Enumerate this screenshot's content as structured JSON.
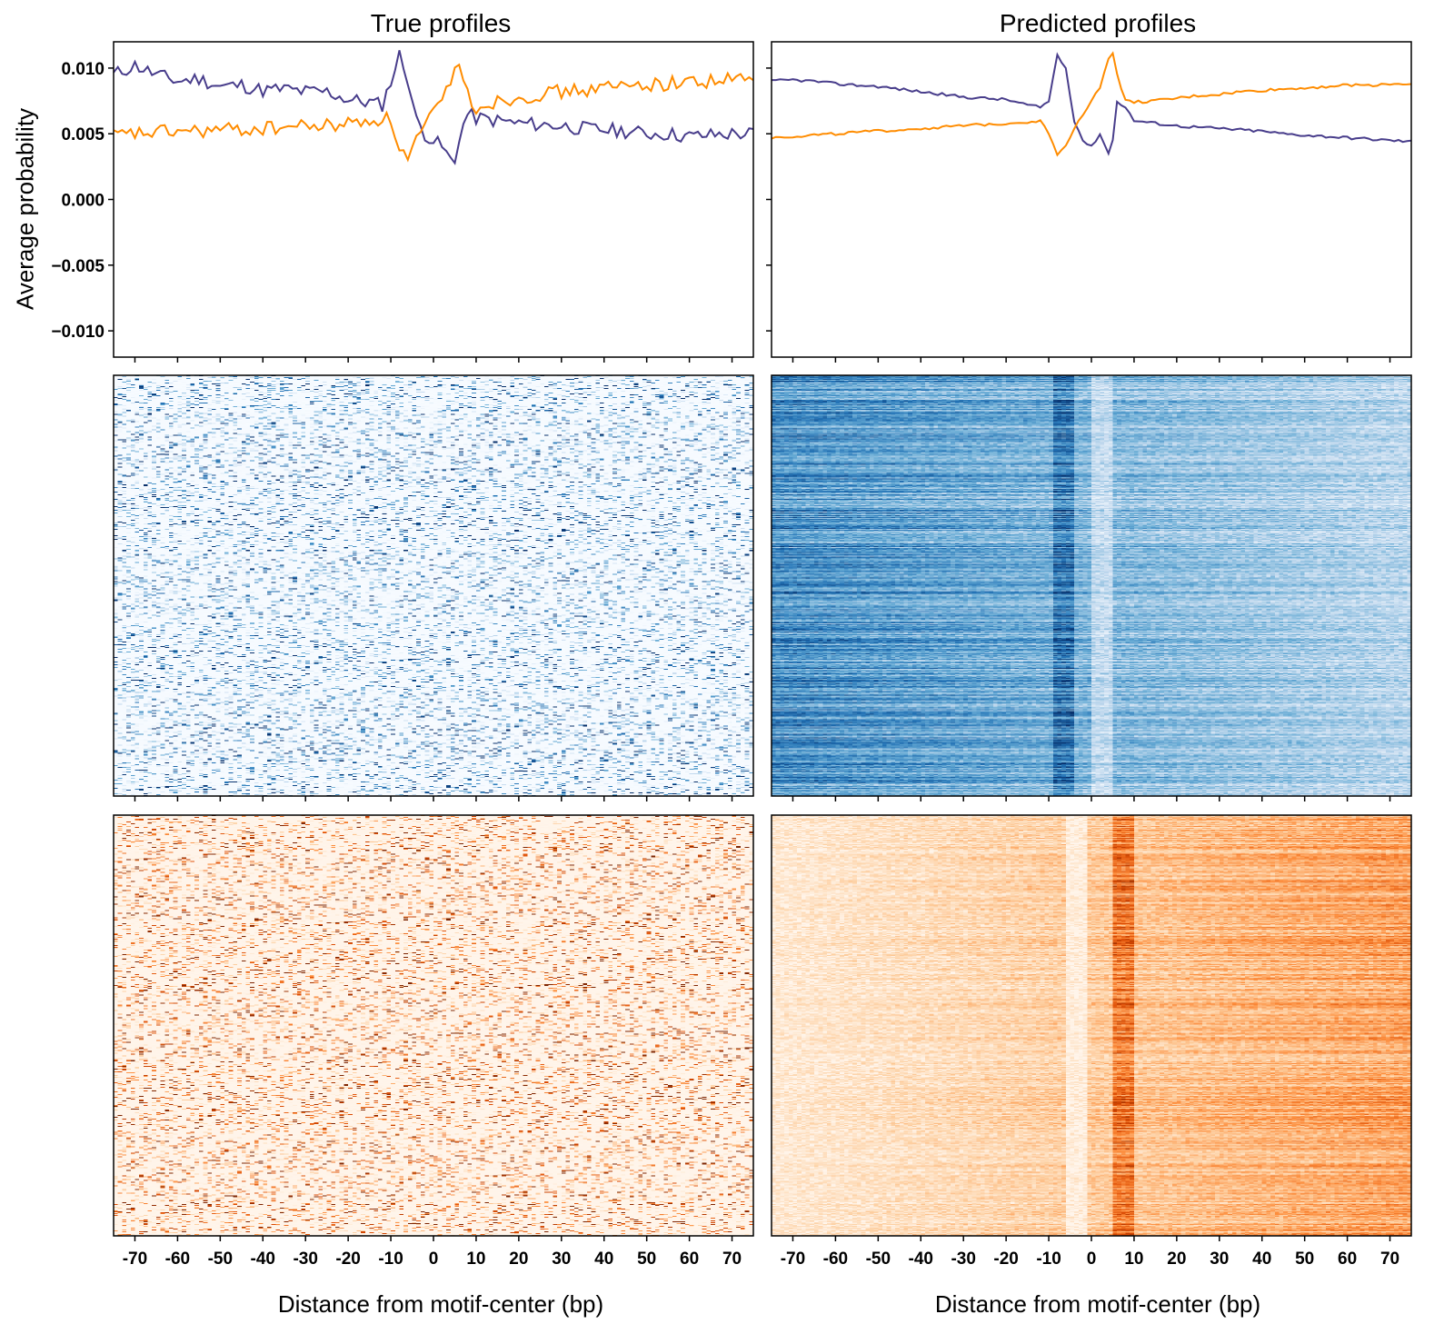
{
  "figure": {
    "ylabel": "Average probability"
  },
  "chart_data": [
    {
      "type": "line",
      "panel": "left",
      "title": "True profiles",
      "xlabel": "",
      "ylabel": "Average probability",
      "xlim": [
        -75,
        75
      ],
      "ylim": [
        -0.012,
        0.012
      ],
      "yticks": [
        "0.010",
        "0.005",
        "0.000",
        "−0.005",
        "−0.010"
      ],
      "ytick_values": [
        0.01,
        0.005,
        0.0,
        -0.005,
        -0.01
      ],
      "series": [
        {
          "color": "#483d8b",
          "x": [
            -75,
            -70,
            -65,
            -60,
            -55,
            -50,
            -45,
            -40,
            -35,
            -30,
            -25,
            -20,
            -15,
            -12,
            -10,
            -8,
            -6,
            -4,
            -2,
            0,
            2,
            4,
            5,
            6,
            8,
            10,
            15,
            20,
            25,
            30,
            35,
            40,
            45,
            50,
            55,
            60,
            65,
            70,
            75
          ],
          "y": [
            0.0095,
            0.0102,
            0.0095,
            0.009,
            0.0092,
            0.0086,
            0.0087,
            0.0083,
            0.0084,
            0.0082,
            0.0082,
            0.0076,
            0.0074,
            0.0072,
            0.009,
            0.011,
            0.0092,
            0.006,
            0.005,
            0.0045,
            0.004,
            0.003,
            0.0028,
            0.0048,
            0.0065,
            0.0062,
            0.006,
            0.0058,
            0.0057,
            0.0056,
            0.0054,
            0.0053,
            0.0052,
            0.005,
            0.005,
            0.0048,
            0.0049,
            0.005,
            0.005
          ]
        },
        {
          "color": "#ff8c00",
          "x": [
            -75,
            -70,
            -65,
            -60,
            -55,
            -50,
            -45,
            -40,
            -35,
            -30,
            -25,
            -20,
            -15,
            -12,
            -10,
            -8,
            -6,
            -4,
            -2,
            0,
            2,
            4,
            5,
            6,
            8,
            10,
            15,
            20,
            25,
            30,
            35,
            40,
            45,
            50,
            55,
            60,
            65,
            70,
            75
          ],
          "y": [
            0.0048,
            0.005,
            0.0051,
            0.0052,
            0.0052,
            0.0053,
            0.0053,
            0.0054,
            0.0055,
            0.0056,
            0.0056,
            0.0058,
            0.006,
            0.0062,
            0.006,
            0.004,
            0.003,
            0.0045,
            0.0055,
            0.0065,
            0.0075,
            0.009,
            0.0105,
            0.01,
            0.008,
            0.007,
            0.0075,
            0.0078,
            0.008,
            0.0082,
            0.0083,
            0.0085,
            0.0086,
            0.0088,
            0.0088,
            0.009,
            0.009,
            0.0091,
            0.0092
          ]
        }
      ]
    },
    {
      "type": "line",
      "panel": "right",
      "title": "Predicted profiles",
      "xlabel": "",
      "ylabel": "",
      "xlim": [
        -75,
        75
      ],
      "ylim": [
        -0.012,
        0.012
      ],
      "series": [
        {
          "color": "#483d8b",
          "x": [
            -75,
            -70,
            -65,
            -60,
            -55,
            -50,
            -45,
            -40,
            -35,
            -30,
            -25,
            -20,
            -15,
            -12,
            -10,
            -8,
            -6,
            -4,
            -2,
            0,
            2,
            4,
            5,
            6,
            8,
            10,
            15,
            20,
            25,
            30,
            35,
            40,
            45,
            50,
            55,
            60,
            65,
            70,
            75
          ],
          "y": [
            0.009,
            0.0091,
            0.009,
            0.0088,
            0.0087,
            0.0086,
            0.0084,
            0.0082,
            0.008,
            0.0078,
            0.0077,
            0.0076,
            0.0072,
            0.007,
            0.0075,
            0.011,
            0.01,
            0.006,
            0.0045,
            0.004,
            0.005,
            0.0035,
            0.0045,
            0.0075,
            0.007,
            0.006,
            0.0058,
            0.0056,
            0.0055,
            0.0054,
            0.0053,
            0.0052,
            0.005,
            0.0049,
            0.0048,
            0.0047,
            0.0046,
            0.0045,
            0.0044
          ]
        },
        {
          "color": "#ff8c00",
          "x": [
            -75,
            -70,
            -65,
            -60,
            -55,
            -50,
            -45,
            -40,
            -35,
            -30,
            -25,
            -20,
            -15,
            -12,
            -10,
            -8,
            -6,
            -4,
            -2,
            0,
            2,
            4,
            5,
            6,
            8,
            10,
            15,
            20,
            25,
            30,
            35,
            40,
            45,
            50,
            55,
            60,
            65,
            70,
            75
          ],
          "y": [
            0.0047,
            0.0048,
            0.0049,
            0.005,
            0.0051,
            0.0052,
            0.0053,
            0.0054,
            0.0055,
            0.0056,
            0.0057,
            0.0058,
            0.0059,
            0.006,
            0.005,
            0.0035,
            0.004,
            0.0055,
            0.0065,
            0.0075,
            0.0085,
            0.0108,
            0.0112,
            0.0095,
            0.0075,
            0.0074,
            0.0075,
            0.0077,
            0.0079,
            0.008,
            0.0082,
            0.0083,
            0.0084,
            0.0085,
            0.0086,
            0.0087,
            0.0087,
            0.0088,
            0.0088
          ]
        }
      ]
    },
    {
      "type": "heatmap",
      "panel": "left",
      "colormap": "Blues",
      "xlim": [
        -75,
        75
      ],
      "xlabel": "",
      "note": "per-region positive-strand profiles"
    },
    {
      "type": "heatmap",
      "panel": "right",
      "colormap": "Blues",
      "xlim": [
        -75,
        75
      ],
      "xlabel": ""
    },
    {
      "type": "heatmap",
      "panel": "left",
      "colormap": "Oranges",
      "xlim": [
        -75,
        75
      ],
      "xlabel": "Distance from motif-center (bp)",
      "xticks": [
        "-70",
        "-60",
        "-50",
        "-40",
        "-30",
        "-20",
        "-10",
        "0",
        "10",
        "20",
        "30",
        "40",
        "50",
        "60",
        "70"
      ],
      "xtick_values": [
        -70,
        -60,
        -50,
        -40,
        -30,
        -20,
        -10,
        0,
        10,
        20,
        30,
        40,
        50,
        60,
        70
      ]
    },
    {
      "type": "heatmap",
      "panel": "right",
      "colormap": "Oranges",
      "xlim": [
        -75,
        75
      ],
      "xlabel": "Distance from motif-center (bp)",
      "xticks": [
        "-70",
        "-60",
        "-50",
        "-40",
        "-30",
        "-20",
        "-10",
        "0",
        "10",
        "20",
        "30",
        "40",
        "50",
        "60",
        "70"
      ],
      "xtick_values": [
        -70,
        -60,
        -50,
        -40,
        -30,
        -20,
        -10,
        0,
        10,
        20,
        30,
        40,
        50,
        60,
        70
      ]
    }
  ]
}
